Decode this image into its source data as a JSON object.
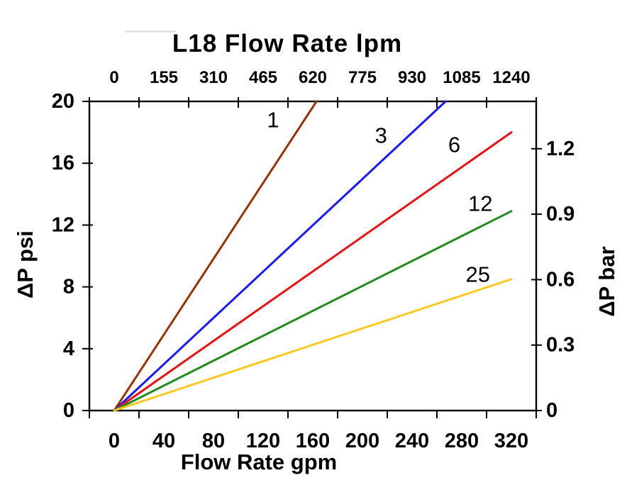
{
  "figure": {
    "title": "L18 Flow Rate lpm",
    "xlabel_bottom": "Flow Rate gpm",
    "ylabel_left": "ΔP psi",
    "ylabel_right": "ΔP bar"
  },
  "chart_data": {
    "type": "line",
    "title": "L18 Flow Rate lpm",
    "grid": false,
    "legend": "inline-line-labels",
    "axes": {
      "x_bottom": {
        "label": "Flow Rate gpm",
        "unit": "gpm",
        "ticks": [
          0,
          40,
          80,
          120,
          160,
          200,
          240,
          280,
          320
        ],
        "range": [
          0,
          320
        ]
      },
      "x_top": {
        "label": "L18 Flow Rate lpm",
        "unit": "lpm",
        "ticks": [
          0,
          155,
          310,
          465,
          620,
          775,
          930,
          1085,
          1240
        ],
        "range": [
          0,
          1240
        ]
      },
      "y_left": {
        "label": "ΔP psi",
        "unit": "psi",
        "ticks": [
          0,
          4,
          8,
          12,
          16,
          20
        ],
        "range": [
          0,
          20
        ]
      },
      "y_right": {
        "label": "ΔP bar",
        "unit": "bar",
        "tick_labels": [
          "0",
          "0.3",
          "0.6",
          "0.9",
          "1.2"
        ],
        "tick_values": [
          0,
          0.3,
          0.6,
          0.9,
          1.2
        ],
        "range": [
          0,
          1.417
        ]
      }
    },
    "series": [
      {
        "label": "1",
        "color": "#993307",
        "points_gpm_psi": [
          [
            0,
            0
          ],
          [
            163,
            20
          ]
        ],
        "slope_psi_per_gpm": 0.123,
        "label_at_gpm_psi": [
          128,
          18.8
        ]
      },
      {
        "label": "3",
        "color": "#1a1aff",
        "points_gpm_psi": [
          [
            0,
            0
          ],
          [
            267,
            20
          ]
        ],
        "slope_psi_per_gpm": 0.075,
        "label_at_gpm_psi": [
          215,
          17.8
        ]
      },
      {
        "label": "6",
        "color": "#ee1111",
        "points_gpm_psi": [
          [
            0,
            0
          ],
          [
            320,
            18
          ]
        ],
        "slope_psi_per_gpm": 0.056,
        "label_at_gpm_psi": [
          274,
          17.2
        ]
      },
      {
        "label": "12",
        "color": "#1e8c1e",
        "points_gpm_psi": [
          [
            0,
            0
          ],
          [
            320,
            12.9
          ]
        ],
        "slope_psi_per_gpm": 0.04,
        "label_at_gpm_psi": [
          295,
          13.4
        ]
      },
      {
        "label": "25",
        "color": "#ffc81e",
        "points_gpm_psi": [
          [
            0,
            0
          ],
          [
            320,
            8.5
          ]
        ],
        "slope_psi_per_gpm": 0.027,
        "label_at_gpm_psi": [
          293,
          8.8
        ]
      }
    ]
  }
}
